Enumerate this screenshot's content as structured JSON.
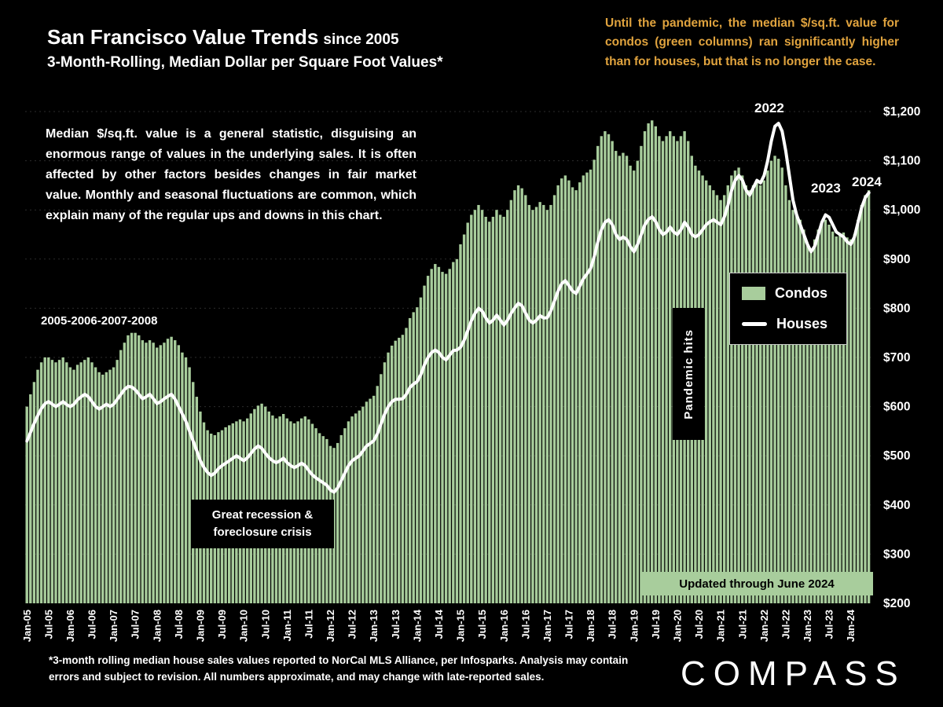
{
  "header": {
    "title_main": "San Francisco Value Trends",
    "title_suffix": "since 2005",
    "subtitle": "3-Month-Rolling, Median Dollar per Square Foot Values*"
  },
  "annotations": {
    "top_right": "Until the pandemic, the median $/sq.ft. value for condos (green columns) ran significantly higher than for houses, but that is no longer the case.",
    "left_paragraph": "Median $/sq.ft. value is a general statistic, disguising an enormous range of values in the underlying sales. It is often affected by other factors besides changes in fair market value. Monthly and seasonal fluctuations are common, which explain many of the regular ups and downs in this chart.",
    "era_label": "2005-2006-2007-2008",
    "recession_label": "Great recession & foreclosure crisis",
    "pandemic_label": "Pandemic hits",
    "peak_2022": "2022",
    "peak_2023": "2023",
    "peak_2024": "2024",
    "updated_banner": "Updated through June 2024"
  },
  "legend": {
    "condos": "Condos",
    "houses": "Houses"
  },
  "footnote": "*3-month rolling median house sales values reported to NorCal MLS Alliance, per Infosparks. Analysis may contain errors and subject to revision. All numbers approximate, and may change with late-reported sales.",
  "logo": "COMPASS",
  "colors": {
    "background": "#000000",
    "bar_green": "#A8CD9C",
    "line_white": "#FFFFFF",
    "accent_orange": "#E0A33E"
  },
  "chart_data": {
    "type": "bar",
    "title": "San Francisco Value Trends since 2005 — 3-Month-Rolling Median Dollar per Square Foot Values",
    "x_interval": "monthly",
    "x_start": "Jan-05",
    "x_end": "Jun-24",
    "ylim": [
      200,
      1200
    ],
    "grid": true,
    "legend_position": "right-middle",
    "y_ticks": [
      "$1,200",
      "$1,100",
      "$1,000",
      "$900",
      "$800",
      "$700",
      "$600",
      "$500",
      "$400",
      "$300",
      "$200"
    ],
    "x_tick_labels": [
      "Jan-05",
      "Jul-05",
      "Jan-06",
      "Jul-06",
      "Jan-07",
      "Jul-07",
      "Jan-08",
      "Jul-08",
      "Jan-09",
      "Jul-09",
      "Jan-10",
      "Jul-10",
      "Jan-11",
      "Jul-11",
      "Jan-12",
      "Jul-12",
      "Jan-13",
      "Jul-13",
      "Jan-14",
      "Jul-14",
      "Jan-15",
      "Jul-15",
      "Jan-16",
      "Jul-16",
      "Jan-17",
      "Jul-17",
      "Jan-18",
      "Jul-18",
      "Jan-19",
      "Jul-19",
      "Jan-20",
      "Jul-20",
      "Jan-21",
      "Jul-21",
      "Jan-22",
      "Jul-22",
      "Jan-23",
      "Jul-23",
      "Jan-24"
    ],
    "series": [
      {
        "name": "Condos",
        "type": "bar",
        "color": "#A8CD9C",
        "values": [
          600,
          625,
          650,
          675,
          690,
          700,
          700,
          695,
          690,
          695,
          700,
          690,
          680,
          675,
          685,
          690,
          695,
          700,
          690,
          680,
          670,
          665,
          670,
          675,
          680,
          695,
          715,
          730,
          745,
          750,
          750,
          745,
          735,
          730,
          735,
          730,
          720,
          725,
          730,
          738,
          742,
          735,
          725,
          710,
          700,
          680,
          650,
          620,
          590,
          568,
          552,
          545,
          542,
          548,
          552,
          558,
          562,
          566,
          570,
          574,
          570,
          576,
          586,
          595,
          602,
          606,
          600,
          590,
          582,
          576,
          580,
          585,
          576,
          570,
          566,
          570,
          576,
          580,
          574,
          565,
          556,
          546,
          540,
          534,
          520,
          516,
          526,
          542,
          556,
          570,
          580,
          586,
          592,
          600,
          610,
          616,
          622,
          642,
          666,
          690,
          710,
          724,
          734,
          740,
          746,
          760,
          780,
          792,
          802,
          822,
          846,
          866,
          880,
          890,
          884,
          874,
          870,
          880,
          894,
          900,
          930,
          950,
          974,
          990,
          1000,
          1010,
          1000,
          986,
          976,
          986,
          1000,
          990,
          986,
          1000,
          1020,
          1040,
          1050,
          1044,
          1030,
          1010,
          1000,
          1006,
          1016,
          1010,
          1000,
          1010,
          1030,
          1050,
          1064,
          1070,
          1060,
          1046,
          1040,
          1056,
          1070,
          1076,
          1082,
          1102,
          1130,
          1150,
          1160,
          1154,
          1140,
          1120,
          1110,
          1116,
          1110,
          1090,
          1080,
          1100,
          1130,
          1160,
          1176,
          1182,
          1170,
          1150,
          1140,
          1150,
          1160,
          1150,
          1140,
          1150,
          1160,
          1140,
          1110,
          1090,
          1080,
          1070,
          1060,
          1050,
          1040,
          1030,
          1020,
          1030,
          1050,
          1070,
          1080,
          1086,
          1070,
          1050,
          1040,
          1050,
          1060,
          1050,
          1060,
          1080,
          1100,
          1110,
          1104,
          1086,
          1050,
          1020,
          1000,
          990,
          980,
          960,
          930,
          920,
          940,
          960,
          974,
          980,
          970,
          956,
          946,
          950,
          954,
          944,
          940,
          950,
          980,
          1010,
          1030,
          1040
        ]
      },
      {
        "name": "Houses",
        "type": "line",
        "color": "#FFFFFF",
        "values": [
          530,
          548,
          566,
          582,
          596,
          606,
          610,
          605,
          600,
          605,
          610,
          604,
          600,
          605,
          614,
          620,
          625,
          620,
          610,
          600,
          595,
          600,
          605,
          600,
          605,
          615,
          625,
          635,
          641,
          640,
          634,
          625,
          616,
          620,
          625,
          616,
          606,
          610,
          616,
          621,
          625,
          615,
          600,
          585,
          570,
          550,
          530,
          510,
          490,
          476,
          466,
          460,
          465,
          474,
          480,
          485,
          490,
          495,
          500,
          495,
          490,
          496,
          505,
          514,
          520,
          515,
          505,
          496,
          490,
          486,
          490,
          495,
          486,
          480,
          476,
          480,
          485,
          480,
          470,
          461,
          455,
          450,
          445,
          440,
          430,
          426,
          435,
          450,
          465,
          480,
          490,
          495,
          500,
          510,
          520,
          525,
          531,
          545,
          565,
          585,
          600,
          610,
          615,
          615,
          616,
          625,
          639,
          646,
          651,
          665,
          685,
          700,
          710,
          715,
          710,
          700,
          695,
          705,
          714,
          715,
          721,
          735,
          755,
          775,
          790,
          800,
          794,
          780,
          770,
          776,
          786,
          776,
          766,
          776,
          790,
          801,
          810,
          805,
          790,
          776,
          770,
          776,
          785,
          780,
          781,
          795,
          815,
          835,
          850,
          856,
          846,
          835,
          830,
          845,
          860,
          870,
          881,
          905,
          935,
          960,
          975,
          980,
          970,
          950,
          940,
          945,
          940,
          925,
          915,
          930,
          950,
          970,
          981,
          986,
          976,
          960,
          950,
          955,
          965,
          955,
          950,
          960,
          975,
          965,
          950,
          945,
          950,
          960,
          970,
          976,
          980,
          975,
          970,
          986,
          1010,
          1040,
          1060,
          1070,
          1060,
          1040,
          1030,
          1045,
          1060,
          1055,
          1070,
          1100,
          1140,
          1170,
          1176,
          1160,
          1120,
          1070,
          1020,
          990,
          970,
          950,
          930,
          915,
          926,
          950,
          975,
          990,
          985,
          970,
          955,
          950,
          945,
          935,
          930,
          945,
          975,
          1005,
          1025,
          1035
        ]
      }
    ]
  }
}
